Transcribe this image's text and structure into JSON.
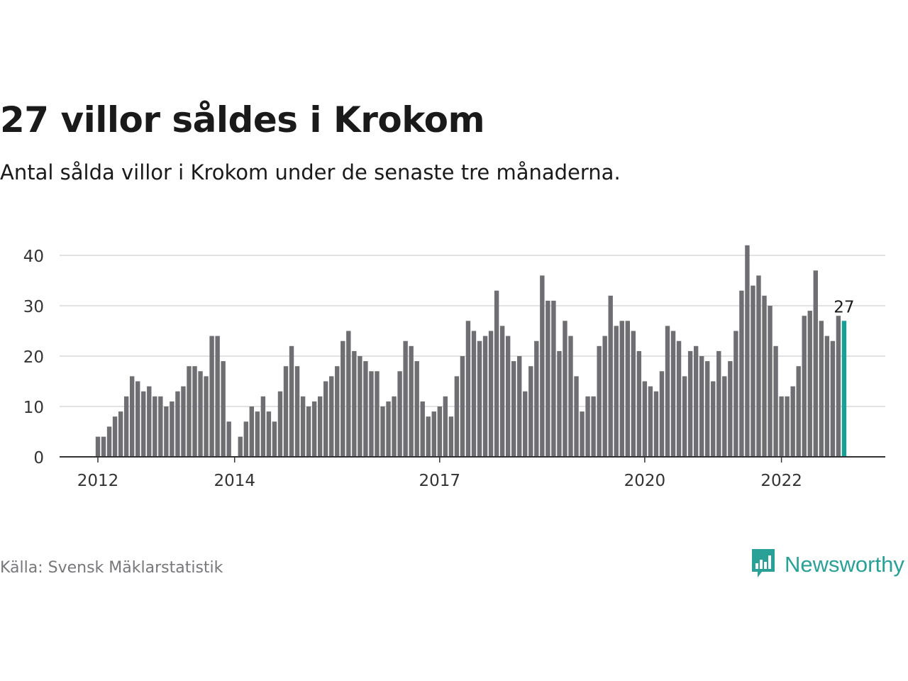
{
  "header": {
    "title": "27 villor såldes i Krokom",
    "subtitle": "Antal sålda villor i Krokom under de senaste tre månaderna."
  },
  "footer": {
    "source": "Källa: Svensk Mäklarstatistik",
    "brand": "Newsworthy",
    "brand_icon": "bar-chart-speech-bubble-icon"
  },
  "colors": {
    "bar": "#6f6e73",
    "highlight": "#17a196",
    "grid": "#d9d9d9",
    "axis": "#333333",
    "brand": "#2aa197"
  },
  "chart_data": {
    "type": "bar",
    "title": "27 villor såldes i Krokom",
    "subtitle": "Antal sålda villor i Krokom under de senaste tre månaderna.",
    "xlabel": "",
    "ylabel": "",
    "ylim": [
      0,
      42
    ],
    "yticks": [
      0,
      10,
      20,
      30,
      40
    ],
    "grid": true,
    "x_start": "2012-01",
    "x_interval": "month",
    "xtick_labels": [
      {
        "label": "2012",
        "date": "2012-01"
      },
      {
        "label": "2014",
        "date": "2014-01"
      },
      {
        "label": "2017",
        "date": "2017-01"
      },
      {
        "label": "2020",
        "date": "2020-01"
      },
      {
        "label": "2022",
        "date": "2022-01"
      }
    ],
    "values": [
      4,
      4,
      6,
      8,
      9,
      12,
      16,
      15,
      13,
      14,
      12,
      12,
      10,
      11,
      13,
      14,
      18,
      18,
      17,
      16,
      24,
      24,
      19,
      7,
      0,
      4,
      7,
      10,
      9,
      12,
      9,
      7,
      13,
      18,
      22,
      18,
      12,
      10,
      11,
      12,
      15,
      16,
      18,
      23,
      25,
      21,
      20,
      19,
      17,
      17,
      10,
      11,
      12,
      17,
      23,
      22,
      19,
      11,
      8,
      9,
      10,
      12,
      8,
      16,
      20,
      27,
      25,
      23,
      24,
      25,
      33,
      26,
      24,
      19,
      20,
      13,
      18,
      23,
      36,
      31,
      31,
      21,
      27,
      24,
      16,
      9,
      12,
      12,
      22,
      24,
      32,
      26,
      27,
      27,
      25,
      21,
      15,
      14,
      13,
      17,
      26,
      25,
      23,
      16,
      21,
      22,
      20,
      19,
      15,
      21,
      16,
      19,
      25,
      33,
      42,
      34,
      36,
      32,
      30,
      22,
      12,
      12,
      14,
      18,
      28,
      29,
      37,
      27,
      24,
      23,
      28,
      27
    ],
    "highlight_last": true,
    "annotation": {
      "label": "27",
      "value": 27,
      "target": "last"
    }
  }
}
